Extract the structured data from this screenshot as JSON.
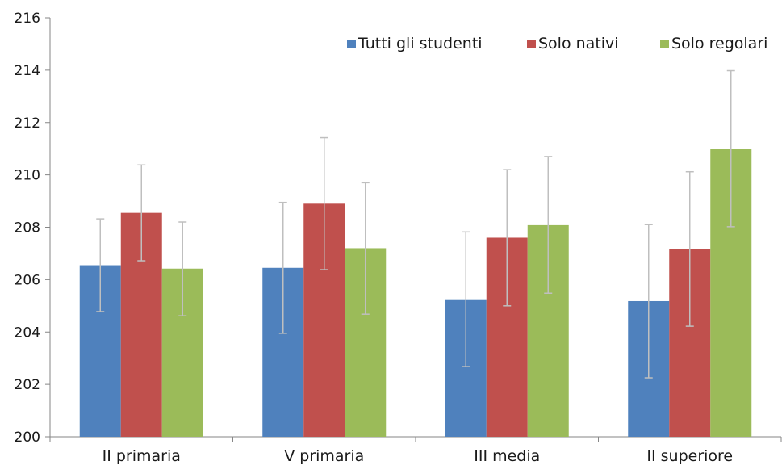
{
  "chart_data": {
    "type": "bar",
    "categories": [
      "II primaria",
      "V primaria",
      "III media",
      "II superiore"
    ],
    "series": [
      {
        "name": "Tutti gli studenti",
        "color": "#4F81BD",
        "values": [
          206.55,
          206.45,
          205.25,
          205.18
        ],
        "error_low": [
          204.78,
          203.95,
          202.68,
          202.25
        ],
        "error_high": [
          208.32,
          208.95,
          207.82,
          208.1
        ]
      },
      {
        "name": "Solo nativi",
        "color": "#C0504D",
        "values": [
          208.55,
          208.9,
          207.6,
          207.18
        ],
        "error_low": [
          206.72,
          206.38,
          205.0,
          204.22
        ],
        "error_high": [
          210.38,
          211.42,
          210.2,
          210.12
        ]
      },
      {
        "name": "Solo regolari",
        "color": "#9BBB59",
        "values": [
          206.42,
          207.2,
          208.08,
          211.0
        ],
        "error_low": [
          204.62,
          204.68,
          205.48,
          208.02
        ],
        "error_high": [
          208.2,
          209.7,
          210.7,
          213.98
        ]
      }
    ],
    "title": "",
    "xlabel": "",
    "ylabel": "",
    "ylim": [
      200,
      216
    ],
    "yticks": [
      200,
      202,
      204,
      206,
      208,
      210,
      212,
      214,
      216
    ],
    "grid": false,
    "legend_position": "top-right",
    "error_bar_color": "#BFBFBF",
    "axis_color": "#868686"
  }
}
